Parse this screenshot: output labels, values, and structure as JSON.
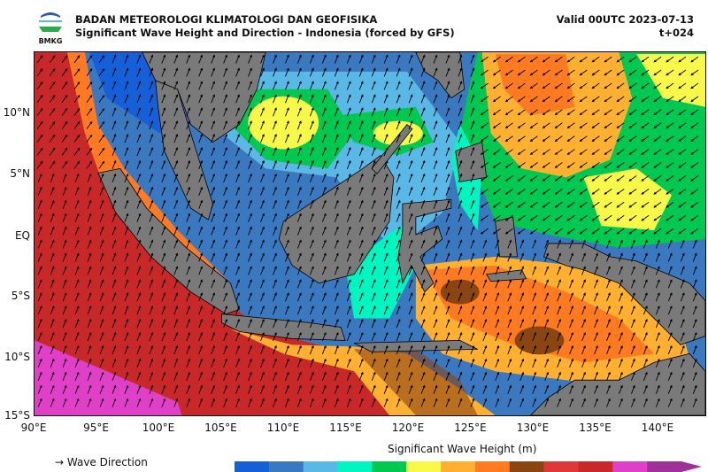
{
  "header": {
    "agency": "BADAN METEOROLOGI KLIMATOLOGI DAN GEOFISIKA",
    "title": "Significant Wave Height and Direction - Indonesia (forced by GFS)",
    "valid": "Valid 00UTC 2023-07-13",
    "lead": "t+024",
    "logo_text": "BMKG"
  },
  "axes": {
    "lat_labels": [
      "10°N",
      "5°N",
      "EQ",
      "5°S",
      "10°S",
      "15°S"
    ],
    "lon_labels": [
      "90°E",
      "95°E",
      "100°E",
      "105°E",
      "110°E",
      "115°E",
      "120°E",
      "125°E",
      "130°E",
      "135°E",
      "140°E"
    ]
  },
  "legend": {
    "direction_label": "→ Wave Direction",
    "colorbar_title": "Significant Wave Height (m)",
    "colors": [
      "#1560d8",
      "#3a78c0",
      "#5ab8e6",
      "#00f5c0",
      "#00c850",
      "#f8f84a",
      "#ffb030",
      "#ff7a20",
      "#8b4513",
      "#e03838",
      "#c82828",
      "#e040c8",
      "#a0309a"
    ]
  },
  "map_colors": {
    "land": "#7a7a7a"
  }
}
